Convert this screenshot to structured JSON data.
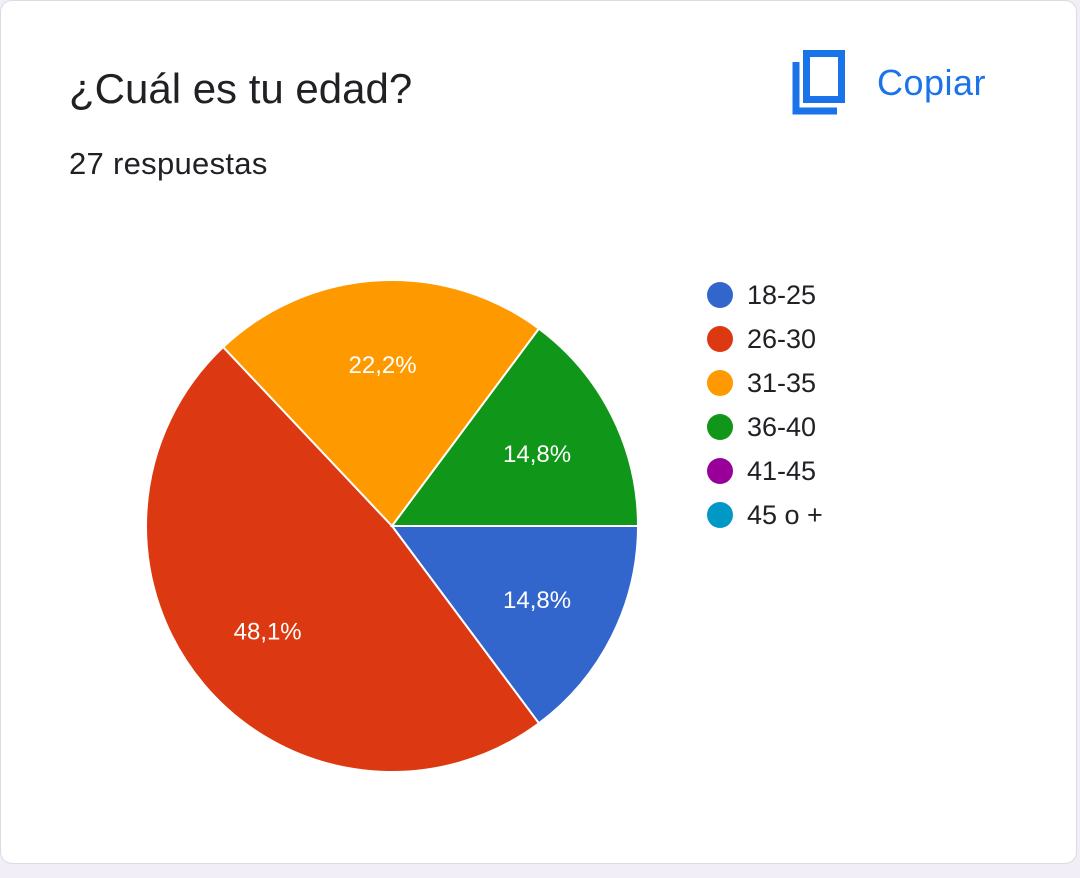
{
  "card": {
    "title": "¿Cuál es tu edad?",
    "subtitle": "27 respuestas",
    "copy_label": "Copiar",
    "copy_icon": "copy-icon"
  },
  "colors": {
    "accent": "#1a73e8",
    "text": "#202124"
  },
  "chart_data": {
    "type": "pie",
    "title": "¿Cuál es tu edad?",
    "total_responses": 27,
    "legend_position": "right",
    "categories": [
      "18-25",
      "26-30",
      "31-35",
      "36-40",
      "41-45",
      "45 o +"
    ],
    "values": [
      14.8,
      48.1,
      22.2,
      14.8,
      0,
      0
    ],
    "data_labels": [
      "14,8%",
      "48,1%",
      "22,2%",
      "14,8%",
      "",
      ""
    ],
    "colors": [
      "#3366cc",
      "#dc3912",
      "#ff9900",
      "#109618",
      "#990099",
      "#0099c6"
    ]
  }
}
